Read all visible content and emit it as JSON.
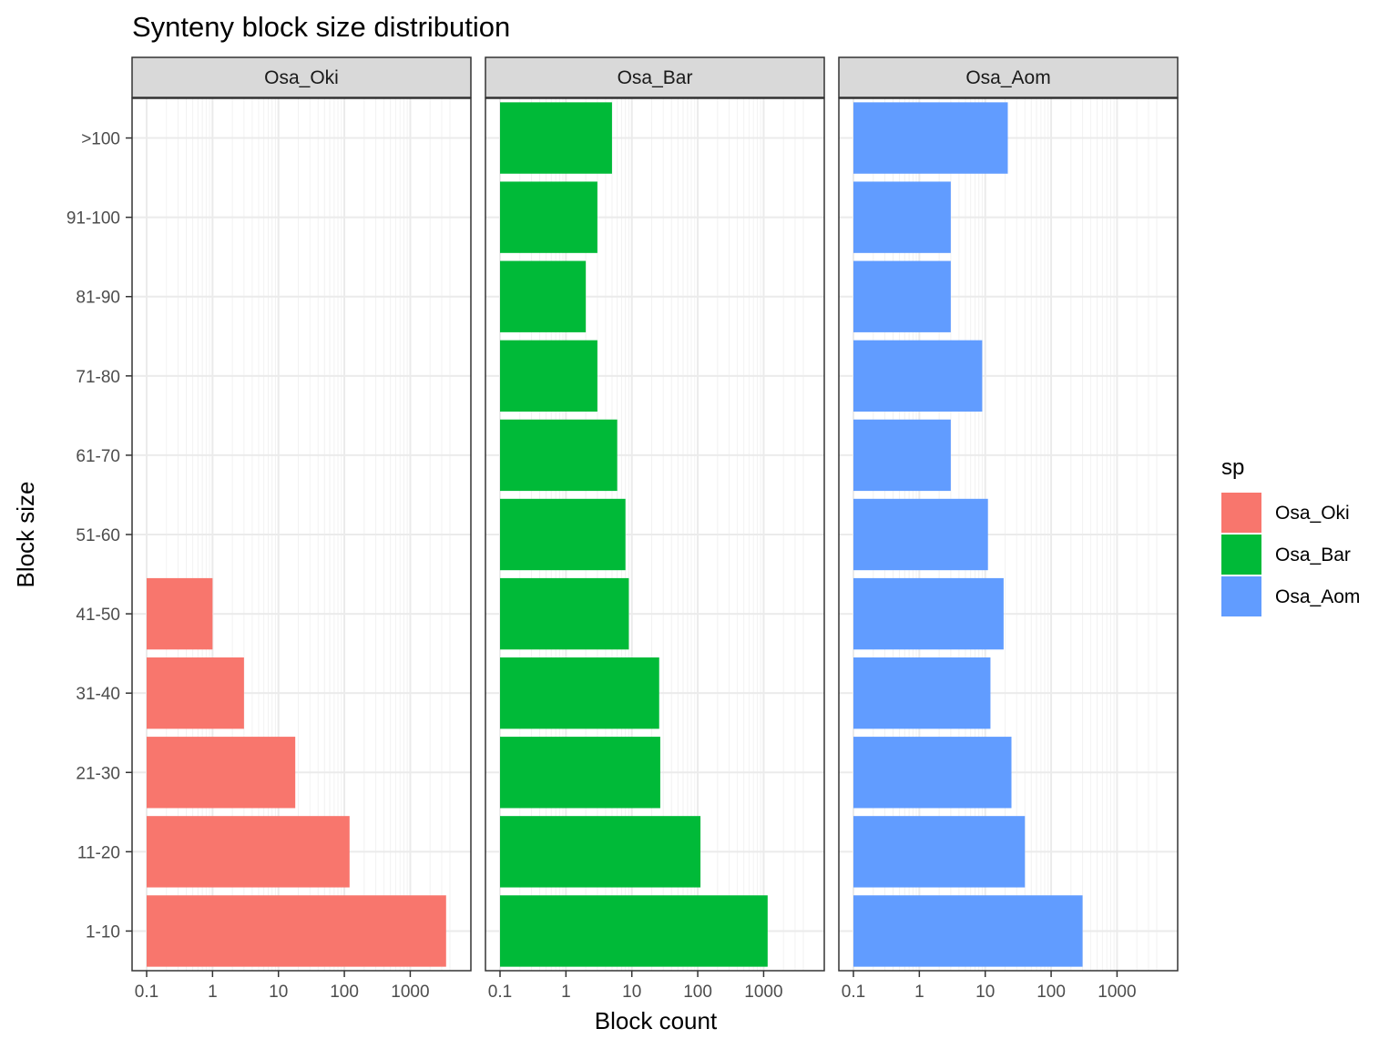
{
  "chart_data": {
    "type": "bar",
    "orientation": "horizontal",
    "facets": true,
    "title": "Synteny block size distribution",
    "xlabel": "Block count",
    "ylabel": "Block size",
    "x_scale": "log10",
    "xlim": [
      0.1,
      5000
    ],
    "x_ticks": [
      0.1,
      1,
      10,
      100,
      1000
    ],
    "x_tick_labels": [
      "0.1",
      "1",
      "10",
      "100",
      "1000"
    ],
    "grid": true,
    "legend_title": "sp",
    "legend_position": "right",
    "categories": [
      "1-10",
      "11-20",
      "21-30",
      "31-40",
      "41-50",
      "51-60",
      "61-70",
      "71-80",
      "81-90",
      "91-100",
      ">100"
    ],
    "series": [
      {
        "name": "Osa_Oki",
        "color": "#F8766D",
        "values": [
          3500,
          120,
          18,
          3,
          1,
          null,
          null,
          null,
          null,
          null,
          null
        ]
      },
      {
        "name": "Osa_Bar",
        "color": "#00BA38",
        "values": [
          1150,
          110,
          27,
          26,
          9,
          8,
          6,
          3,
          2,
          3,
          5
        ]
      },
      {
        "name": "Osa_Aom",
        "color": "#619CFF",
        "values": [
          300,
          40,
          25,
          12,
          19,
          11,
          3,
          9,
          3,
          3,
          22
        ]
      }
    ]
  }
}
